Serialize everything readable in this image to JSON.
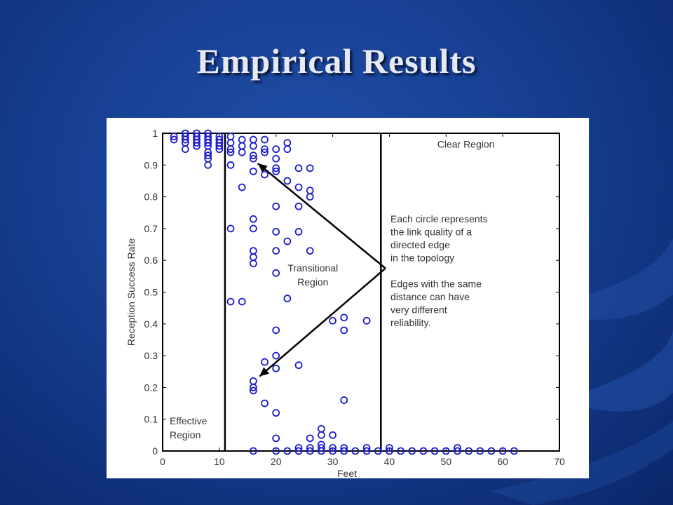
{
  "slide": {
    "title": "Empirical Results"
  },
  "chart_data": {
    "type": "scatter",
    "xlabel": "Feet",
    "ylabel": "Reception Success Rate",
    "xlim": [
      0,
      70
    ],
    "ylim": [
      0,
      1
    ],
    "xticks": [
      "0",
      "10",
      "20",
      "30",
      "40",
      "50",
      "60",
      "70"
    ],
    "yticks": [
      "0",
      "0.1",
      "0.2",
      "0.3",
      "0.4",
      "0.5",
      "0.6",
      "0.7",
      "0.8",
      "0.9",
      "1"
    ],
    "grid": false,
    "marker_color": "#1c1ccc",
    "regions": [
      {
        "label_lines": [
          "Effective",
          "Region"
        ],
        "boundary_x": 11
      },
      {
        "label_lines": [
          "Transitional",
          "Region"
        ],
        "boundary_x": 38.5
      },
      {
        "label_lines": [
          "Clear Region"
        ]
      }
    ],
    "annotation": {
      "lines": [
        "Each circle represents",
        "the link quality of a",
        "directed edge",
        "in the topology",
        "",
        "Edges with the same",
        "distance can have",
        "very different",
        "reliability."
      ]
    },
    "points": [
      [
        2,
        0.99
      ],
      [
        2,
        0.98
      ],
      [
        4,
        1.0
      ],
      [
        4,
        0.99
      ],
      [
        4,
        0.98
      ],
      [
        4,
        0.97
      ],
      [
        4,
        0.95
      ],
      [
        6,
        1.0
      ],
      [
        6,
        0.99
      ],
      [
        6,
        0.98
      ],
      [
        6,
        0.97
      ],
      [
        6,
        0.96
      ],
      [
        8,
        1.0
      ],
      [
        8,
        0.99
      ],
      [
        8,
        0.98
      ],
      [
        8,
        0.97
      ],
      [
        8,
        0.96
      ],
      [
        8,
        0.94
      ],
      [
        8,
        0.93
      ],
      [
        8,
        0.92
      ],
      [
        8,
        0.9
      ],
      [
        10,
        0.99
      ],
      [
        10,
        0.98
      ],
      [
        10,
        0.97
      ],
      [
        10,
        0.96
      ],
      [
        10,
        0.95
      ],
      [
        12,
        0.99
      ],
      [
        12,
        0.97
      ],
      [
        12,
        0.95
      ],
      [
        12,
        0.94
      ],
      [
        12,
        0.9
      ],
      [
        12,
        0.7
      ],
      [
        12,
        0.47
      ],
      [
        14,
        0.98
      ],
      [
        14,
        0.96
      ],
      [
        14,
        0.94
      ],
      [
        14,
        0.83
      ],
      [
        14,
        0.47
      ],
      [
        16,
        0.98
      ],
      [
        16,
        0.96
      ],
      [
        16,
        0.93
      ],
      [
        16,
        0.92
      ],
      [
        16,
        0.88
      ],
      [
        16,
        0.73
      ],
      [
        16,
        0.7
      ],
      [
        16,
        0.63
      ],
      [
        16,
        0.61
      ],
      [
        16,
        0.59
      ],
      [
        16,
        0.22
      ],
      [
        16,
        0.2
      ],
      [
        16,
        0.19
      ],
      [
        16,
        0.0
      ],
      [
        18,
        0.98
      ],
      [
        18,
        0.95
      ],
      [
        18,
        0.94
      ],
      [
        18,
        0.87
      ],
      [
        18,
        0.28
      ],
      [
        18,
        0.15
      ],
      [
        20,
        0.95
      ],
      [
        20,
        0.92
      ],
      [
        20,
        0.89
      ],
      [
        20,
        0.88
      ],
      [
        20,
        0.77
      ],
      [
        20,
        0.69
      ],
      [
        20,
        0.63
      ],
      [
        20,
        0.56
      ],
      [
        20,
        0.38
      ],
      [
        20,
        0.3
      ],
      [
        20,
        0.26
      ],
      [
        20,
        0.12
      ],
      [
        20,
        0.04
      ],
      [
        20,
        0.0
      ],
      [
        22,
        0.97
      ],
      [
        22,
        0.95
      ],
      [
        22,
        0.85
      ],
      [
        22,
        0.66
      ],
      [
        22,
        0.48
      ],
      [
        22,
        0.0
      ],
      [
        24,
        0.89
      ],
      [
        24,
        0.83
      ],
      [
        24,
        0.77
      ],
      [
        24,
        0.69
      ],
      [
        24,
        0.27
      ],
      [
        24,
        0.01
      ],
      [
        24,
        0.0
      ],
      [
        26,
        0.89
      ],
      [
        26,
        0.82
      ],
      [
        26,
        0.8
      ],
      [
        26,
        0.63
      ],
      [
        26,
        0.04
      ],
      [
        26,
        0.01
      ],
      [
        26,
        0.0
      ],
      [
        28,
        0.07
      ],
      [
        28,
        0.05
      ],
      [
        28,
        0.02
      ],
      [
        28,
        0.01
      ],
      [
        28,
        0.0
      ],
      [
        30,
        0.41
      ],
      [
        30,
        0.05
      ],
      [
        30,
        0.01
      ],
      [
        30,
        0.0
      ],
      [
        32,
        0.42
      ],
      [
        32,
        0.38
      ],
      [
        32,
        0.16
      ],
      [
        32,
        0.01
      ],
      [
        32,
        0.0
      ],
      [
        34,
        0.0
      ],
      [
        36,
        0.41
      ],
      [
        36,
        0.01
      ],
      [
        36,
        0.0
      ],
      [
        38,
        0.0
      ],
      [
        40,
        0.01
      ],
      [
        40,
        0.0
      ],
      [
        42,
        0.0
      ],
      [
        44,
        0.0
      ],
      [
        46,
        0.0
      ],
      [
        48,
        0.0
      ],
      [
        50,
        0.0
      ],
      [
        52,
        0.01
      ],
      [
        52,
        0.0
      ],
      [
        54,
        0.0
      ],
      [
        56,
        0.0
      ],
      [
        58,
        0.0
      ],
      [
        60,
        0.0
      ],
      [
        62,
        0.0
      ]
    ]
  }
}
